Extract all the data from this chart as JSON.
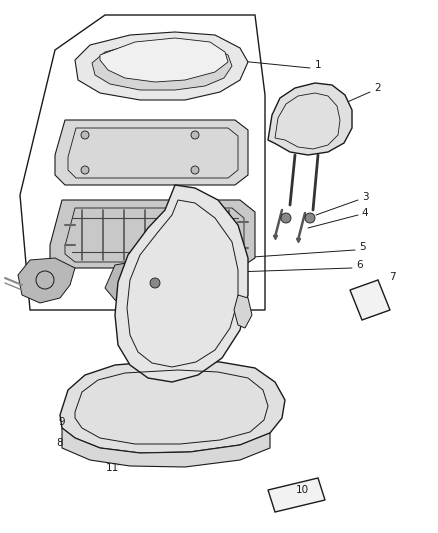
{
  "background_color": "#ffffff",
  "line_color": "#1a1a1a",
  "fig_width": 4.38,
  "fig_height": 5.33,
  "dpi": 100
}
